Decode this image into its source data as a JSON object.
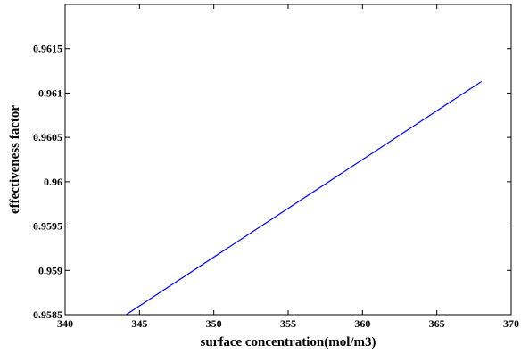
{
  "chart_data": {
    "type": "line",
    "title": "",
    "xlabel": "surface concentration(mol/m3)",
    "ylabel": "effectiveness factor",
    "xlim": [
      340,
      370
    ],
    "ylim": [
      0.9585,
      0.962
    ],
    "x_ticks": [
      340,
      345,
      350,
      355,
      360,
      365,
      370
    ],
    "x_tick_labels": [
      "340",
      "345",
      "350",
      "355",
      "360",
      "365",
      "370"
    ],
    "y_ticks": [
      0.9585,
      0.959,
      0.9595,
      0.96,
      0.9605,
      0.961,
      0.9615
    ],
    "y_tick_labels": [
      "0.9585",
      "0.959",
      "0.9595",
      "0.96",
      "0.9605",
      "0.961",
      "0.9615"
    ],
    "grid": false,
    "legend": "none",
    "series": [
      {
        "color": "#0000ff",
        "x": [
          344.1,
          368
        ],
        "y": [
          0.9585,
          0.96113
        ]
      }
    ]
  }
}
